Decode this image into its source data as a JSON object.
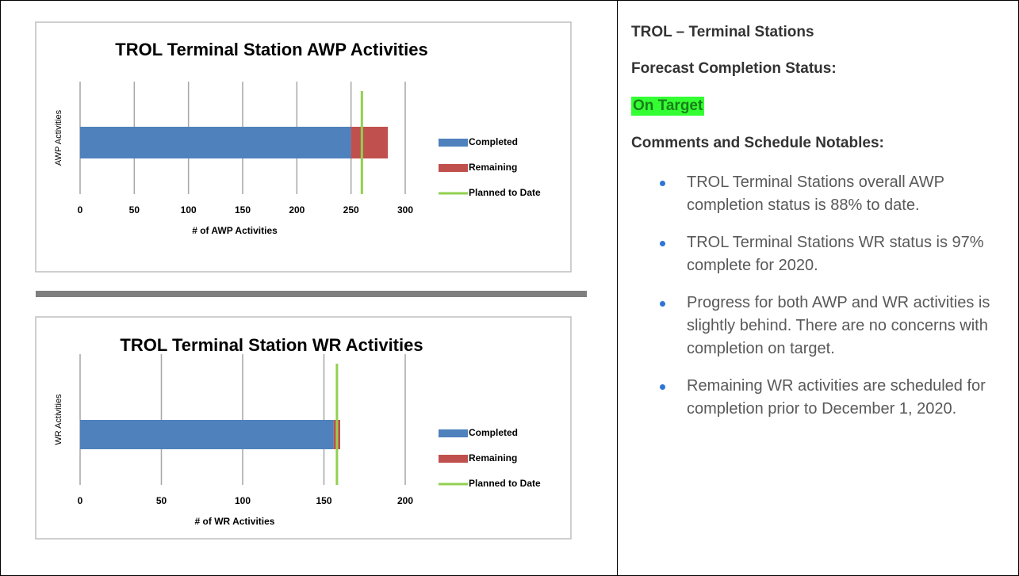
{
  "chart_data": [
    {
      "type": "bar",
      "orientation": "horizontal",
      "stacked": true,
      "title": "TROL Terminal Station AWP Activities",
      "xlabel": "# of AWP Activities",
      "ylabel": "AWP Activities",
      "categories": [
        null
      ],
      "series": [
        {
          "name": "Completed",
          "color": "#4f81bd",
          "values": [
            250
          ]
        },
        {
          "name": "Remaining",
          "color": "#c0504d",
          "values": [
            34
          ]
        },
        {
          "name": "Planned to Date",
          "color": "#92d050",
          "type": "line",
          "values": [
            260
          ]
        }
      ],
      "xlim": [
        0,
        300
      ],
      "xticks": [
        0,
        50,
        100,
        150,
        200,
        250,
        300
      ],
      "grid": true,
      "legend": "right"
    },
    {
      "type": "bar",
      "orientation": "horizontal",
      "stacked": true,
      "title": "TROL Terminal Station WR Activities",
      "xlabel": "# of WR Activities",
      "ylabel": "WR Activities",
      "categories": [
        null
      ],
      "series": [
        {
          "name": "Completed",
          "color": "#4f81bd",
          "values": [
            156
          ]
        },
        {
          "name": "Remaining",
          "color": "#c0504d",
          "values": [
            4
          ]
        },
        {
          "name": "Planned to Date",
          "color": "#92d050",
          "type": "line",
          "values": [
            158
          ]
        }
      ],
      "xlim": [
        0,
        200
      ],
      "xticks": [
        0,
        50,
        100,
        150,
        200
      ],
      "grid": true,
      "legend": "right"
    }
  ],
  "panel": {
    "heading": "TROL – Terminal Stations",
    "status_label": "Forecast Completion Status:",
    "status": "On Target",
    "comments_label": "Comments and Schedule Notables:",
    "bullets": [
      "TROL Terminal Stations overall AWP completion status is 88% to date.",
      "TROL Terminal Stations WR status is 97% complete for 2020.",
      "Progress for both AWP and WR activities is slightly behind.  There are no concerns with completion on target.",
      "Remaining WR activities are scheduled for completion prior to December 1, 2020."
    ]
  }
}
